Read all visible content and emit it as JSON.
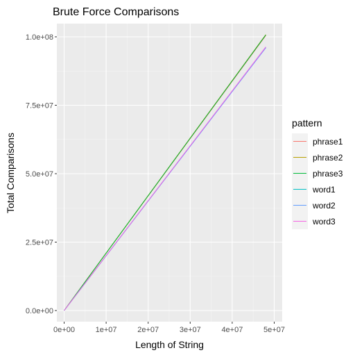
{
  "chart_data": {
    "type": "line",
    "title": "Brute Force Comparisons",
    "xlabel": "Length of String",
    "ylabel": "Total Comparisons",
    "xlim": [
      0,
      48000000
    ],
    "ylim": [
      0,
      101000000
    ],
    "x_ticks": [
      0,
      10000000,
      20000000,
      30000000,
      40000000,
      50000000
    ],
    "x_tick_labels": [
      "0e+00",
      "1e+07",
      "2e+07",
      "3e+07",
      "4e+07",
      "5e+07"
    ],
    "y_ticks": [
      0,
      25000000,
      50000000,
      75000000,
      100000000
    ],
    "y_tick_labels": [
      "0.0e+00",
      "2.5e+07",
      "5.0e+07",
      "7.5e+07",
      "1.0e+08"
    ],
    "grid": true,
    "legend_position": "right",
    "legend_title": "pattern",
    "series": [
      {
        "name": "phrase1",
        "color": "#F8766D",
        "x": [
          0,
          48000000
        ],
        "y": [
          0,
          100500000
        ]
      },
      {
        "name": "phrase2",
        "color": "#B79F00",
        "x": [
          0,
          48000000
        ],
        "y": [
          0,
          100800000
        ]
      },
      {
        "name": "phrase3",
        "color": "#00BA38",
        "x": [
          0,
          48000000
        ],
        "y": [
          0,
          100700000
        ]
      },
      {
        "name": "word1",
        "color": "#00BFC4",
        "x": [
          0,
          48000000
        ],
        "y": [
          0,
          96200000
        ]
      },
      {
        "name": "word2",
        "color": "#619CFF",
        "x": [
          0,
          48000000
        ],
        "y": [
          0,
          96000000
        ]
      },
      {
        "name": "word3",
        "color": "#F564E3",
        "x": [
          0,
          48000000
        ],
        "y": [
          0,
          96300000
        ]
      }
    ]
  }
}
